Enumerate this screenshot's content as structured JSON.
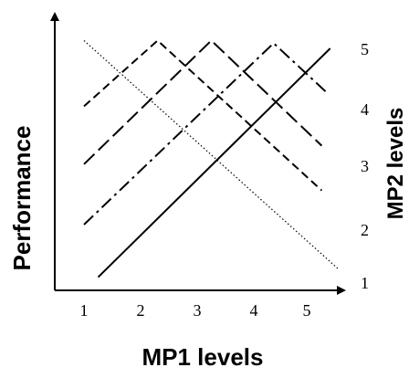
{
  "chart_data": {
    "type": "line",
    "title": "",
    "xlabel": "MP1 levels",
    "ylabel": "Performance",
    "y2label": "MP2 levels",
    "x_ticks": [
      "1",
      "2",
      "3",
      "4",
      "5"
    ],
    "y2_ticks": [
      "1",
      "2",
      "3",
      "4",
      "5"
    ],
    "xlim": [
      0.5,
      5.5
    ],
    "ylim": [
      0,
      1
    ],
    "legend": "none",
    "grid": false,
    "series": [
      {
        "mp2_level": "1",
        "style": "solid",
        "x": [
          1.25,
          5.35
        ],
        "y": [
          0.05,
          0.92
        ]
      },
      {
        "mp2_level": "2",
        "style": "dash-dot",
        "x": [
          1.0,
          4.35,
          5.3
        ],
        "y": [
          0.25,
          0.94,
          0.75
        ]
      },
      {
        "mp2_level": "3",
        "style": "long-dash",
        "x": [
          1.0,
          3.25,
          5.2
        ],
        "y": [
          0.48,
          0.95,
          0.55
        ]
      },
      {
        "mp2_level": "4",
        "style": "dash",
        "x": [
          1.0,
          2.3,
          5.2
        ],
        "y": [
          0.7,
          0.95,
          0.38
        ]
      },
      {
        "mp2_level": "5",
        "style": "dotted",
        "x": [
          1.0,
          5.5
        ],
        "y": [
          0.95,
          0.08
        ]
      }
    ]
  }
}
